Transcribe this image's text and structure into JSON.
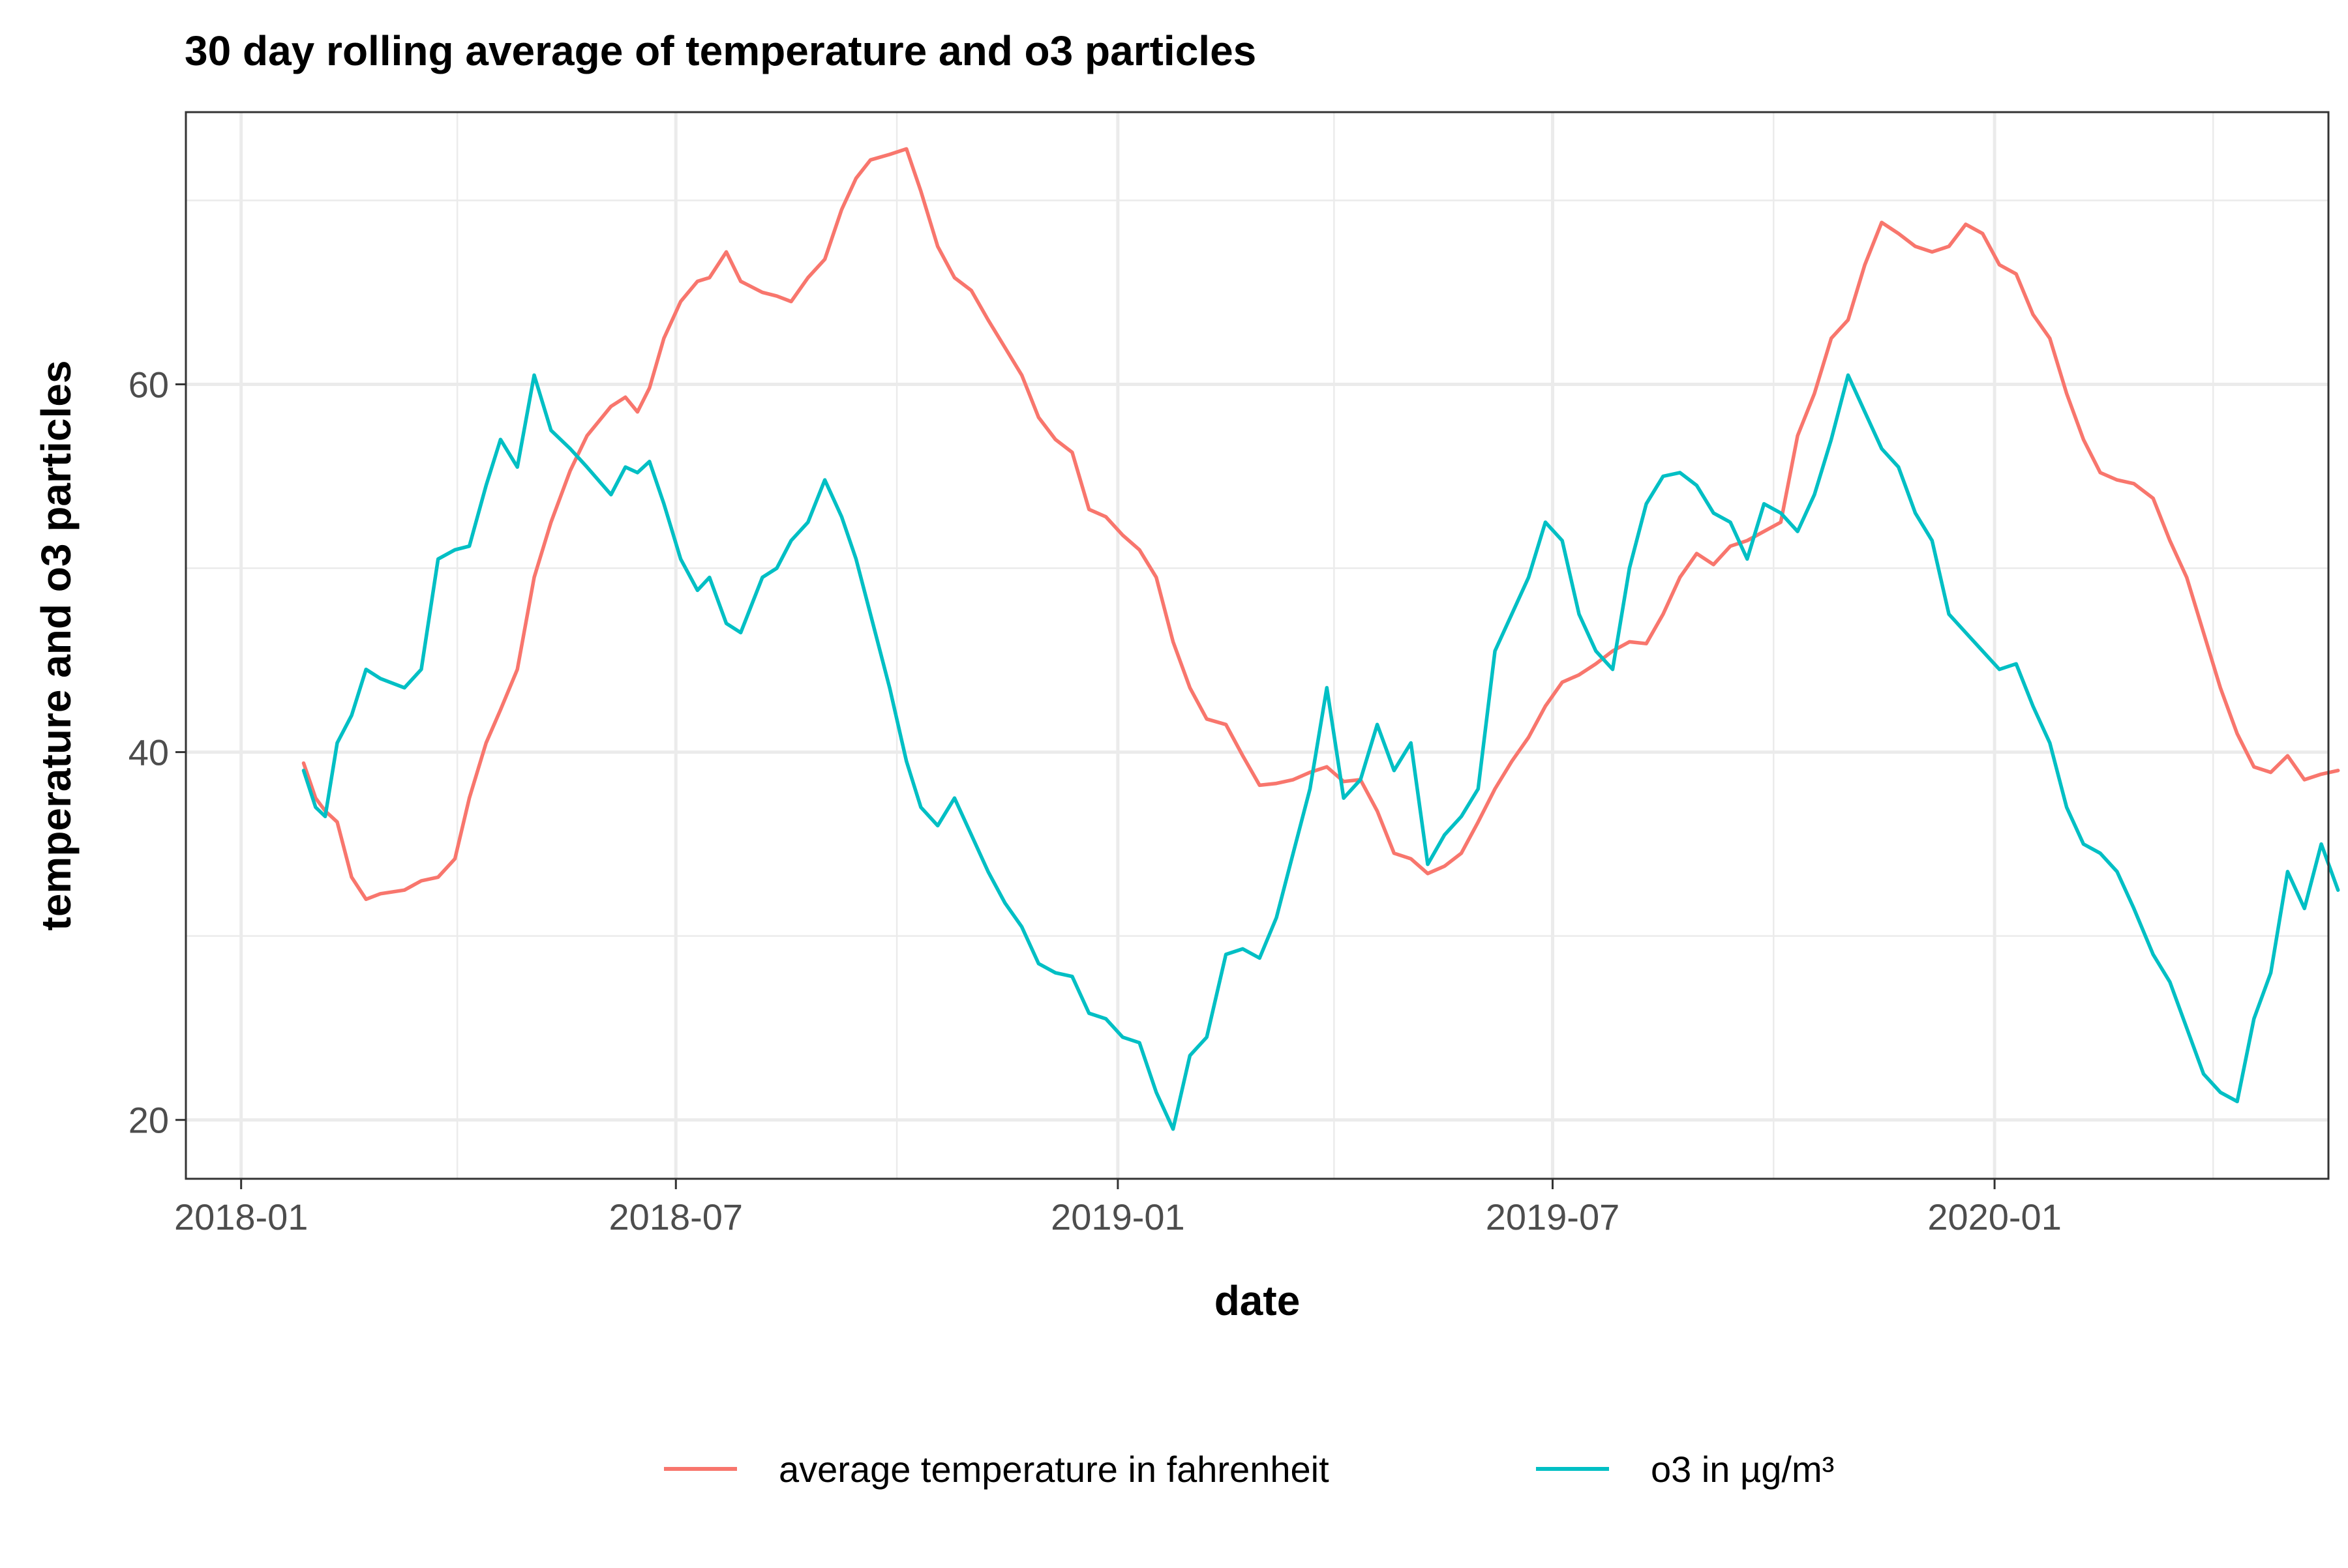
{
  "chart_data": {
    "type": "line",
    "title": "30 day rolling average of temperature and o3 particles",
    "xlabel": "date",
    "ylabel": "temperature and o3 particles",
    "xlim": [
      "2017-12-09",
      "2020-05-19"
    ],
    "ylim": [
      16.8,
      74.8
    ],
    "x_ticks": [
      "2018-01",
      "2018-07",
      "2019-01",
      "2019-07",
      "2020-01"
    ],
    "y_ticks": [
      20,
      40,
      60
    ],
    "grid": true,
    "legend_position": "bottom",
    "series": [
      {
        "name": "average temperature in fahrenheit",
        "color": "#F8766D",
        "points": [
          [
            "2018-01-27",
            39.4
          ],
          [
            "2018-02-01",
            37.5
          ],
          [
            "2018-02-05",
            36.8
          ],
          [
            "2018-02-10",
            36.2
          ],
          [
            "2018-02-16",
            33.2
          ],
          [
            "2018-02-22",
            32.0
          ],
          [
            "2018-02-28",
            32.3
          ],
          [
            "2018-03-10",
            32.5
          ],
          [
            "2018-03-17",
            33.0
          ],
          [
            "2018-03-24",
            33.2
          ],
          [
            "2018-03-31",
            34.2
          ],
          [
            "2018-04-06",
            37.5
          ],
          [
            "2018-04-13",
            40.5
          ],
          [
            "2018-04-19",
            42.3
          ],
          [
            "2018-04-26",
            44.5
          ],
          [
            "2018-05-03",
            49.5
          ],
          [
            "2018-05-10",
            52.5
          ],
          [
            "2018-05-18",
            55.3
          ],
          [
            "2018-05-25",
            57.2
          ],
          [
            "2018-06-04",
            58.8
          ],
          [
            "2018-06-10",
            59.3
          ],
          [
            "2018-06-15",
            58.5
          ],
          [
            "2018-06-20",
            59.8
          ],
          [
            "2018-06-26",
            62.5
          ],
          [
            "2018-07-03",
            64.5
          ],
          [
            "2018-07-10",
            65.6
          ],
          [
            "2018-07-15",
            65.8
          ],
          [
            "2018-07-22",
            67.2
          ],
          [
            "2018-07-28",
            65.6
          ],
          [
            "2018-08-06",
            65.0
          ],
          [
            "2018-08-12",
            64.8
          ],
          [
            "2018-08-18",
            64.5
          ],
          [
            "2018-08-25",
            65.8
          ],
          [
            "2018-09-01",
            66.8
          ],
          [
            "2018-09-08",
            69.5
          ],
          [
            "2018-09-14",
            71.2
          ],
          [
            "2018-09-20",
            72.2
          ],
          [
            "2018-09-28",
            72.5
          ],
          [
            "2018-10-05",
            72.8
          ],
          [
            "2018-10-11",
            70.5
          ],
          [
            "2018-10-18",
            67.5
          ],
          [
            "2018-10-25",
            65.8
          ],
          [
            "2018-11-01",
            65.1
          ],
          [
            "2018-11-08",
            63.5
          ],
          [
            "2018-11-15",
            62.0
          ],
          [
            "2018-11-22",
            60.5
          ],
          [
            "2018-11-29",
            58.2
          ],
          [
            "2018-12-06",
            57.0
          ],
          [
            "2018-12-13",
            56.3
          ],
          [
            "2018-12-20",
            53.2
          ],
          [
            "2018-12-27",
            52.8
          ],
          [
            "2019-01-03",
            51.8
          ],
          [
            "2019-01-10",
            51.0
          ],
          [
            "2019-01-17",
            49.5
          ],
          [
            "2019-01-24",
            46.0
          ],
          [
            "2019-01-31",
            43.5
          ],
          [
            "2019-02-07",
            41.8
          ],
          [
            "2019-02-15",
            41.5
          ],
          [
            "2019-02-22",
            39.8
          ],
          [
            "2019-03-01",
            38.2
          ],
          [
            "2019-03-08",
            38.3
          ],
          [
            "2019-03-15",
            38.5
          ],
          [
            "2019-03-22",
            38.9
          ],
          [
            "2019-03-29",
            39.2
          ],
          [
            "2019-04-05",
            38.4
          ],
          [
            "2019-04-12",
            38.5
          ],
          [
            "2019-04-19",
            36.8
          ],
          [
            "2019-04-26",
            34.5
          ],
          [
            "2019-05-03",
            34.2
          ],
          [
            "2019-05-10",
            33.4
          ],
          [
            "2019-05-17",
            33.8
          ],
          [
            "2019-05-24",
            34.5
          ],
          [
            "2019-05-31",
            36.2
          ],
          [
            "2019-06-07",
            38.0
          ],
          [
            "2019-06-14",
            39.5
          ],
          [
            "2019-06-21",
            40.8
          ],
          [
            "2019-06-28",
            42.5
          ],
          [
            "2019-07-05",
            43.8
          ],
          [
            "2019-07-12",
            44.2
          ],
          [
            "2019-07-19",
            44.8
          ],
          [
            "2019-07-26",
            45.5
          ],
          [
            "2019-08-02",
            46.0
          ],
          [
            "2019-08-09",
            45.9
          ],
          [
            "2019-08-16",
            47.5
          ],
          [
            "2019-08-23",
            49.5
          ],
          [
            "2019-08-30",
            50.8
          ],
          [
            "2019-09-06",
            50.2
          ],
          [
            "2019-09-13",
            51.2
          ],
          [
            "2019-09-20",
            51.5
          ],
          [
            "2019-09-27",
            52.0
          ],
          [
            "2019-10-04",
            52.5
          ],
          [
            "2019-10-11",
            57.2
          ],
          [
            "2019-10-18",
            59.5
          ],
          [
            "2019-10-25",
            62.5
          ],
          [
            "2019-11-01",
            63.5
          ],
          [
            "2019-11-08",
            66.5
          ],
          [
            "2019-11-15",
            68.8
          ],
          [
            "2019-11-22",
            68.2
          ],
          [
            "2019-11-29",
            67.5
          ],
          [
            "2019-12-06",
            67.2
          ],
          [
            "2019-12-13",
            67.5
          ],
          [
            "2019-12-20",
            68.7
          ],
          [
            "2019-12-27",
            68.2
          ],
          [
            "2020-01-03",
            66.5
          ],
          [
            "2020-01-10",
            66.0
          ],
          [
            "2020-01-17",
            63.8
          ],
          [
            "2020-01-24",
            62.5
          ],
          [
            "2020-01-31",
            59.5
          ],
          [
            "2020-02-07",
            57.0
          ],
          [
            "2020-02-14",
            55.2
          ],
          [
            "2020-02-21",
            54.8
          ],
          [
            "2020-02-28",
            54.6
          ],
          [
            "2020-03-07",
            53.8
          ],
          [
            "2020-03-14",
            51.5
          ],
          [
            "2020-03-21",
            49.5
          ],
          [
            "2020-03-28",
            46.5
          ],
          [
            "2020-04-04",
            43.5
          ],
          [
            "2020-04-11",
            41.0
          ],
          [
            "2020-04-18",
            39.2
          ],
          [
            "2020-04-25",
            38.9
          ],
          [
            "2020-05-02",
            39.8
          ],
          [
            "2020-05-09",
            38.5
          ],
          [
            "2020-05-16",
            38.8
          ],
          [
            "2020-05-23",
            39.0
          ]
        ]
      },
      {
        "name": "o3 in µg/m³",
        "color": "#00BFC4",
        "points": [
          [
            "2018-01-27",
            39.0
          ],
          [
            "2018-02-01",
            37.0
          ],
          [
            "2018-02-05",
            36.5
          ],
          [
            "2018-02-10",
            40.5
          ],
          [
            "2018-02-16",
            42.0
          ],
          [
            "2018-02-22",
            44.5
          ],
          [
            "2018-02-28",
            44.0
          ],
          [
            "2018-03-10",
            43.5
          ],
          [
            "2018-03-17",
            44.5
          ],
          [
            "2018-03-24",
            50.5
          ],
          [
            "2018-03-31",
            51.0
          ],
          [
            "2018-04-06",
            51.2
          ],
          [
            "2018-04-13",
            54.5
          ],
          [
            "2018-04-19",
            57.0
          ],
          [
            "2018-04-26",
            55.5
          ],
          [
            "2018-05-03",
            60.5
          ],
          [
            "2018-05-10",
            57.5
          ],
          [
            "2018-05-18",
            56.5
          ],
          [
            "2018-05-25",
            55.5
          ],
          [
            "2018-06-04",
            54.0
          ],
          [
            "2018-06-10",
            55.5
          ],
          [
            "2018-06-15",
            55.2
          ],
          [
            "2018-06-20",
            55.8
          ],
          [
            "2018-06-26",
            53.5
          ],
          [
            "2018-07-03",
            50.5
          ],
          [
            "2018-07-10",
            48.8
          ],
          [
            "2018-07-15",
            49.5
          ],
          [
            "2018-07-22",
            47.0
          ],
          [
            "2018-07-28",
            46.5
          ],
          [
            "2018-08-06",
            49.5
          ],
          [
            "2018-08-12",
            50.0
          ],
          [
            "2018-08-18",
            51.5
          ],
          [
            "2018-08-25",
            52.5
          ],
          [
            "2018-09-01",
            54.8
          ],
          [
            "2018-09-08",
            52.8
          ],
          [
            "2018-09-14",
            50.5
          ],
          [
            "2018-09-20",
            47.5
          ],
          [
            "2018-09-28",
            43.5
          ],
          [
            "2018-10-05",
            39.5
          ],
          [
            "2018-10-11",
            37.0
          ],
          [
            "2018-10-18",
            36.0
          ],
          [
            "2018-10-25",
            37.5
          ],
          [
            "2018-11-01",
            35.5
          ],
          [
            "2018-11-08",
            33.5
          ],
          [
            "2018-11-15",
            31.8
          ],
          [
            "2018-11-22",
            30.5
          ],
          [
            "2018-11-29",
            28.5
          ],
          [
            "2018-12-06",
            28.0
          ],
          [
            "2018-12-13",
            27.8
          ],
          [
            "2018-12-20",
            25.8
          ],
          [
            "2018-12-27",
            25.5
          ],
          [
            "2019-01-03",
            24.5
          ],
          [
            "2019-01-10",
            24.2
          ],
          [
            "2019-01-17",
            21.5
          ],
          [
            "2019-01-24",
            19.5
          ],
          [
            "2019-01-31",
            23.5
          ],
          [
            "2019-02-07",
            24.5
          ],
          [
            "2019-02-15",
            29.0
          ],
          [
            "2019-02-22",
            29.3
          ],
          [
            "2019-03-01",
            28.8
          ],
          [
            "2019-03-08",
            31.0
          ],
          [
            "2019-03-15",
            34.5
          ],
          [
            "2019-03-22",
            38.0
          ],
          [
            "2019-03-29",
            43.5
          ],
          [
            "2019-04-05",
            37.5
          ],
          [
            "2019-04-12",
            38.5
          ],
          [
            "2019-04-19",
            41.5
          ],
          [
            "2019-04-26",
            39.0
          ],
          [
            "2019-05-03",
            40.5
          ],
          [
            "2019-05-10",
            33.9
          ],
          [
            "2019-05-17",
            35.5
          ],
          [
            "2019-05-24",
            36.5
          ],
          [
            "2019-05-31",
            38.0
          ],
          [
            "2019-06-07",
            45.5
          ],
          [
            "2019-06-14",
            47.5
          ],
          [
            "2019-06-21",
            49.5
          ],
          [
            "2019-06-28",
            52.5
          ],
          [
            "2019-07-05",
            51.5
          ],
          [
            "2019-07-12",
            47.5
          ],
          [
            "2019-07-19",
            45.5
          ],
          [
            "2019-07-26",
            44.5
          ],
          [
            "2019-08-02",
            50.0
          ],
          [
            "2019-08-09",
            53.5
          ],
          [
            "2019-08-16",
            55.0
          ],
          [
            "2019-08-23",
            55.2
          ],
          [
            "2019-08-30",
            54.5
          ],
          [
            "2019-09-06",
            53.0
          ],
          [
            "2019-09-13",
            52.5
          ],
          [
            "2019-09-20",
            50.5
          ],
          [
            "2019-09-27",
            53.5
          ],
          [
            "2019-10-04",
            53.0
          ],
          [
            "2019-10-11",
            52.0
          ],
          [
            "2019-10-18",
            54.0
          ],
          [
            "2019-10-25",
            57.0
          ],
          [
            "2019-11-01",
            60.5
          ],
          [
            "2019-11-08",
            58.5
          ],
          [
            "2019-11-15",
            56.5
          ],
          [
            "2019-11-22",
            55.5
          ],
          [
            "2019-11-29",
            53.0
          ],
          [
            "2019-12-06",
            51.5
          ],
          [
            "2019-12-13",
            47.5
          ],
          [
            "2019-12-20",
            46.5
          ],
          [
            "2019-12-27",
            45.5
          ],
          [
            "2020-01-03",
            44.5
          ],
          [
            "2020-01-10",
            44.8
          ],
          [
            "2020-01-17",
            42.5
          ],
          [
            "2020-01-24",
            40.5
          ],
          [
            "2020-01-31",
            37.0
          ],
          [
            "2020-02-07",
            35.0
          ],
          [
            "2020-02-14",
            34.5
          ],
          [
            "2020-02-21",
            33.5
          ],
          [
            "2020-02-28",
            31.5
          ],
          [
            "2020-03-07",
            29.0
          ],
          [
            "2020-03-14",
            27.5
          ],
          [
            "2020-03-21",
            25.0
          ],
          [
            "2020-03-28",
            22.5
          ],
          [
            "2020-04-04",
            21.5
          ],
          [
            "2020-04-11",
            21.0
          ],
          [
            "2020-04-18",
            25.5
          ],
          [
            "2020-04-25",
            28.0
          ],
          [
            "2020-05-02",
            33.5
          ],
          [
            "2020-05-09",
            31.5
          ],
          [
            "2020-05-16",
            35.0
          ],
          [
            "2020-05-23",
            32.5
          ]
        ]
      }
    ]
  }
}
